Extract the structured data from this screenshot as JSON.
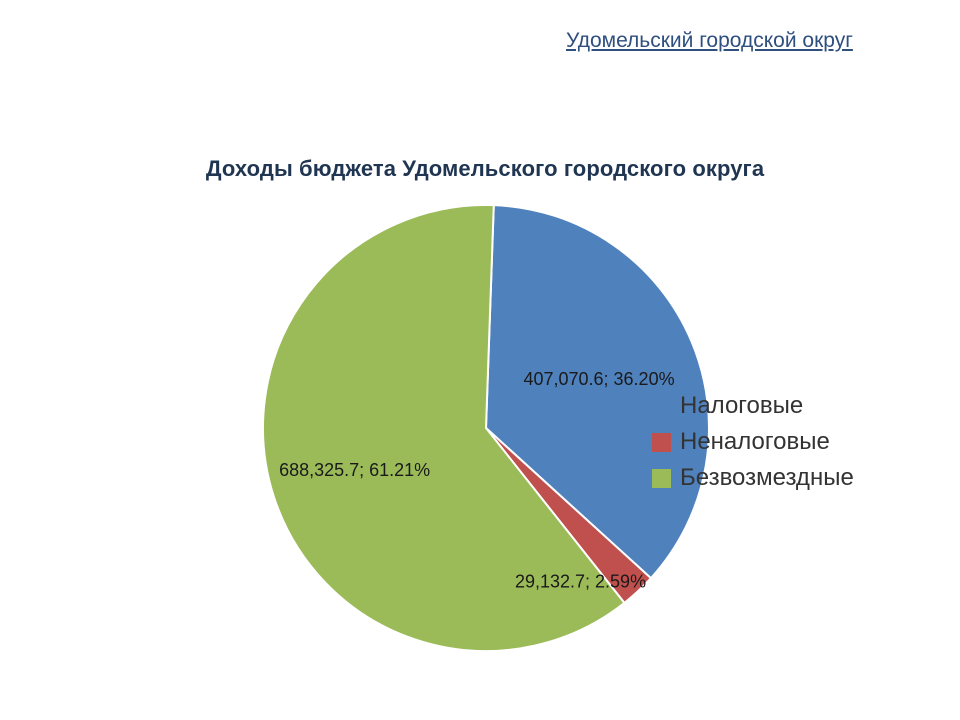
{
  "header": {
    "link_text": "Удомельский городской округ"
  },
  "chart_data": {
    "type": "pie",
    "title": "Доходы бюджета Удомельского городского округа",
    "categories": [
      "Налоговые",
      "Неналоговые",
      "Безвозмездные"
    ],
    "values": [
      407070.6,
      29132.7,
      688325.7
    ],
    "data_labels": [
      "407,070.6; 36.20%",
      "29,132.7; 2.59%",
      "688,325.7; 61.21%"
    ],
    "colors": [
      "#4f81bd",
      "#c0504d",
      "#9bbb59"
    ],
    "legend_position": "right",
    "start_angle_deg": 2
  }
}
